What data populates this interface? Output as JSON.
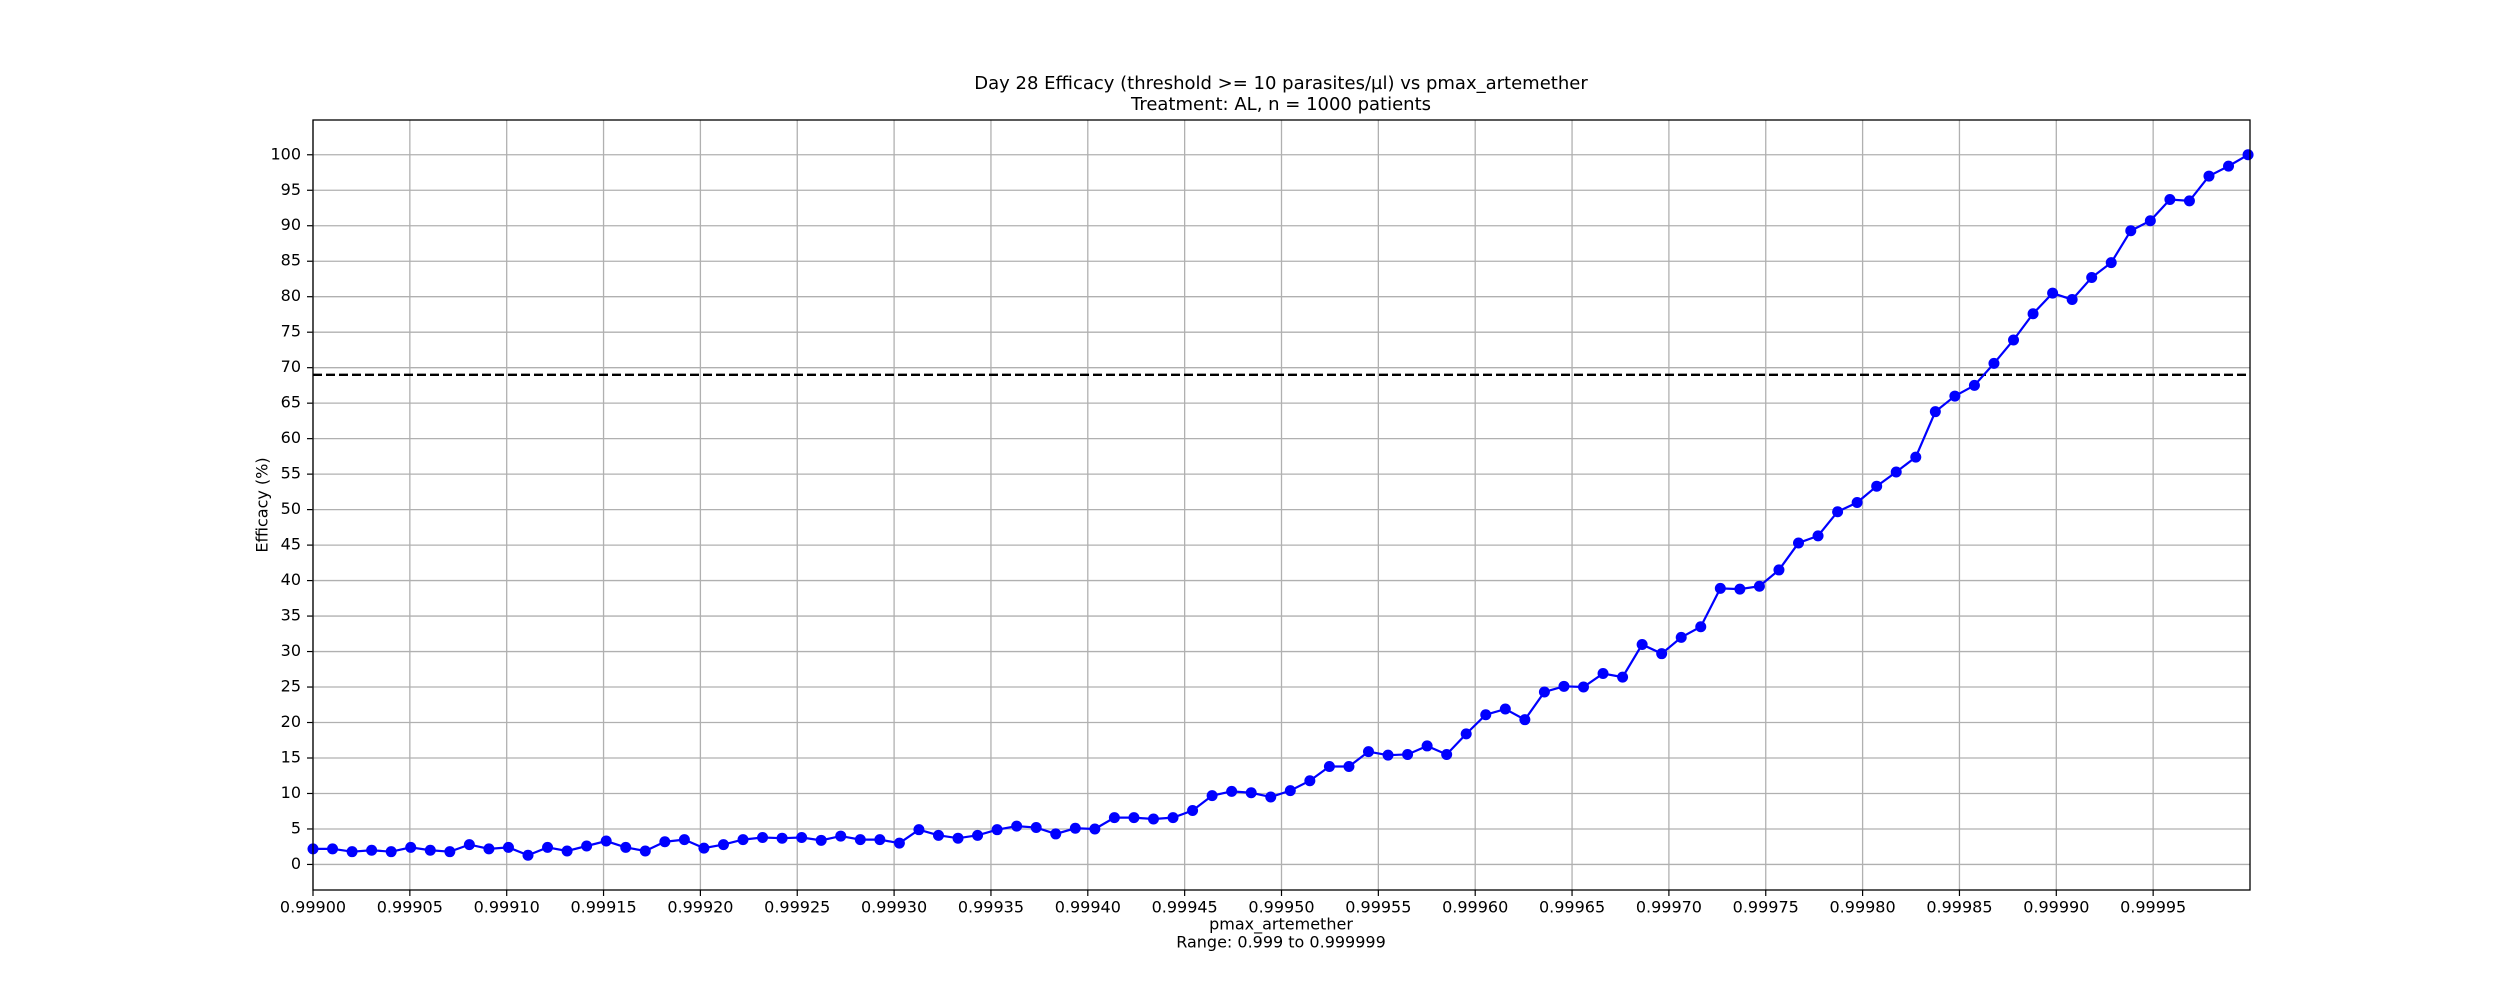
{
  "chart_data": {
    "type": "line",
    "title": "Day 28 Efficacy (threshold >= 10 parasites/µl) vs pmax_artemether",
    "subtitle": "Treatment: AL, n = 1000 patients",
    "xlabel": "pmax_artemether",
    "xlabel_note": "Range: 0.999 to 0.999999",
    "ylabel": "Efficacy (%)",
    "color": "#0000ff",
    "x": [
      0.999,
      0.99901009,
      0.99902018,
      0.99903027,
      0.99904036,
      0.99905045,
      0.99906055,
      0.99907064,
      0.99908073,
      0.99909082,
      0.99910091,
      0.999111,
      0.99912109,
      0.99913118,
      0.99914127,
      0.99915136,
      0.99916145,
      0.99917155,
      0.99918164,
      0.99919173,
      0.99920182,
      0.99921191,
      0.999222,
      0.99923209,
      0.99924218,
      0.99925227,
      0.99926236,
      0.99927245,
      0.99928255,
      0.99929264,
      0.99930273,
      0.99931282,
      0.99932291,
      0.999333,
      0.99934309,
      0.99935318,
      0.99936327,
      0.99937336,
      0.99938345,
      0.99939355,
      0.99940364,
      0.99941373,
      0.99942382,
      0.99943391,
      0.999444,
      0.99945409,
      0.99946418,
      0.99947427,
      0.99948436,
      0.99949445,
      0.99950455,
      0.99951464,
      0.99952473,
      0.99953482,
      0.99954491,
      0.999555,
      0.99956509,
      0.99957518,
      0.99958527,
      0.99959536,
      0.99960545,
      0.99961555,
      0.99962564,
      0.99963573,
      0.99964582,
      0.99965591,
      0.999666,
      0.99967609,
      0.99968618,
      0.99969627,
      0.99970636,
      0.99971645,
      0.99972655,
      0.99973664,
      0.99974673,
      0.99975682,
      0.99976691,
      0.999777,
      0.99978709,
      0.99979718,
      0.99980727,
      0.99981736,
      0.99982745,
      0.99983755,
      0.99984764,
      0.99985773,
      0.99986782,
      0.99987791,
      0.999888,
      0.99989809,
      0.99990818,
      0.99991827,
      0.99992836,
      0.99993845,
      0.99994855,
      0.99995864,
      0.99996873,
      0.99997882,
      0.99998891,
      0.999999
    ],
    "values": [
      2.2,
      2.2,
      1.8,
      2.0,
      1.8,
      2.4,
      2.0,
      1.8,
      2.8,
      2.2,
      2.4,
      1.3,
      2.4,
      1.9,
      2.6,
      3.3,
      2.4,
      1.9,
      3.2,
      3.5,
      2.3,
      2.8,
      3.5,
      3.8,
      3.7,
      3.8,
      3.4,
      4.0,
      3.5,
      3.5,
      3.0,
      4.9,
      4.1,
      3.7,
      4.1,
      4.9,
      5.4,
      5.2,
      4.3,
      5.1,
      5.0,
      6.6,
      6.6,
      6.4,
      6.6,
      7.6,
      9.7,
      10.3,
      10.1,
      9.5,
      10.4,
      11.8,
      13.8,
      13.8,
      15.9,
      15.4,
      15.5,
      16.7,
      15.5,
      18.4,
      21.1,
      21.9,
      20.4,
      24.3,
      25.1,
      25.0,
      26.9,
      26.4,
      31.0,
      29.7,
      32.0,
      33.5,
      38.9,
      38.8,
      39.2,
      41.5,
      45.3,
      46.3,
      49.7,
      51.0,
      53.3,
      55.3,
      57.4,
      63.8,
      66.0,
      67.5,
      70.6,
      73.9,
      77.6,
      80.5,
      79.6,
      82.7,
      84.8,
      89.3,
      90.7,
      93.7,
      93.5,
      97.0,
      98.4,
      100.0
    ],
    "reference_line": 69,
    "xlim": [
      0.999,
      1.0
    ],
    "ylim": [
      -3.6,
      104.9
    ],
    "xticks": [
      {
        "value": 0.999,
        "label": "0.99900"
      },
      {
        "value": 0.99905,
        "label": "0.99905"
      },
      {
        "value": 0.9991,
        "label": "0.99910"
      },
      {
        "value": 0.99915,
        "label": "0.99915"
      },
      {
        "value": 0.9992,
        "label": "0.99920"
      },
      {
        "value": 0.99925,
        "label": "0.99925"
      },
      {
        "value": 0.9993,
        "label": "0.99930"
      },
      {
        "value": 0.99935,
        "label": "0.99935"
      },
      {
        "value": 0.9994,
        "label": "0.99940"
      },
      {
        "value": 0.99945,
        "label": "0.99945"
      },
      {
        "value": 0.9995,
        "label": "0.99950"
      },
      {
        "value": 0.99955,
        "label": "0.99955"
      },
      {
        "value": 0.9996,
        "label": "0.99960"
      },
      {
        "value": 0.99965,
        "label": "0.99965"
      },
      {
        "value": 0.9997,
        "label": "0.99970"
      },
      {
        "value": 0.99975,
        "label": "0.99975"
      },
      {
        "value": 0.9998,
        "label": "0.99980"
      },
      {
        "value": 0.99985,
        "label": "0.99985"
      },
      {
        "value": 0.9999,
        "label": "0.99990"
      },
      {
        "value": 0.99995,
        "label": "0.99995"
      }
    ],
    "yticks": [
      0,
      5,
      10,
      15,
      20,
      25,
      30,
      35,
      40,
      45,
      50,
      55,
      60,
      65,
      70,
      75,
      80,
      85,
      90,
      95,
      100
    ],
    "grid": true
  }
}
